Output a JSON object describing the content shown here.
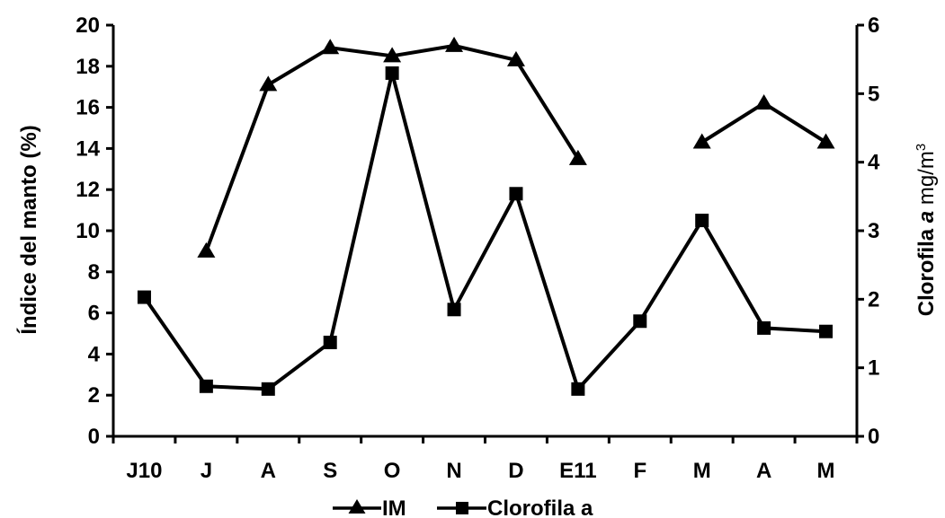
{
  "chart_data": {
    "type": "line",
    "categories": [
      "J10",
      "J",
      "A",
      "S",
      "O",
      "N",
      "D",
      "E11",
      "F",
      "M",
      "A",
      "M"
    ],
    "y_left": {
      "label": "Índice del manto (%)",
      "ylim": [
        0,
        20
      ],
      "ticks": [
        "0",
        "2",
        "4",
        "6",
        "8",
        "10",
        "12",
        "14",
        "16",
        "18",
        "20"
      ]
    },
    "y_right": {
      "label_prefix": "Clorofila ",
      "label_italic": "a",
      "label_unit": " mg/m",
      "label_sup": "3",
      "ylim": [
        0,
        6
      ],
      "ticks": [
        "0",
        "1",
        "2",
        "3",
        "4",
        "5",
        "6"
      ]
    },
    "series": [
      {
        "name": "IM",
        "axis": "left",
        "marker": "triangle",
        "color": "#000000",
        "values": [
          null,
          9.0,
          17.1,
          18.9,
          18.5,
          19.0,
          18.3,
          13.5,
          null,
          14.3,
          16.2,
          14.3
        ]
      },
      {
        "name": "Clorofila a",
        "axis": "right",
        "marker": "square",
        "color": "#000000",
        "values": [
          2.03,
          0.73,
          0.69,
          1.37,
          5.3,
          1.85,
          3.54,
          0.69,
          1.68,
          3.15,
          1.58,
          1.53
        ]
      }
    ],
    "legend": {
      "position": "bottom"
    },
    "grid": false
  }
}
